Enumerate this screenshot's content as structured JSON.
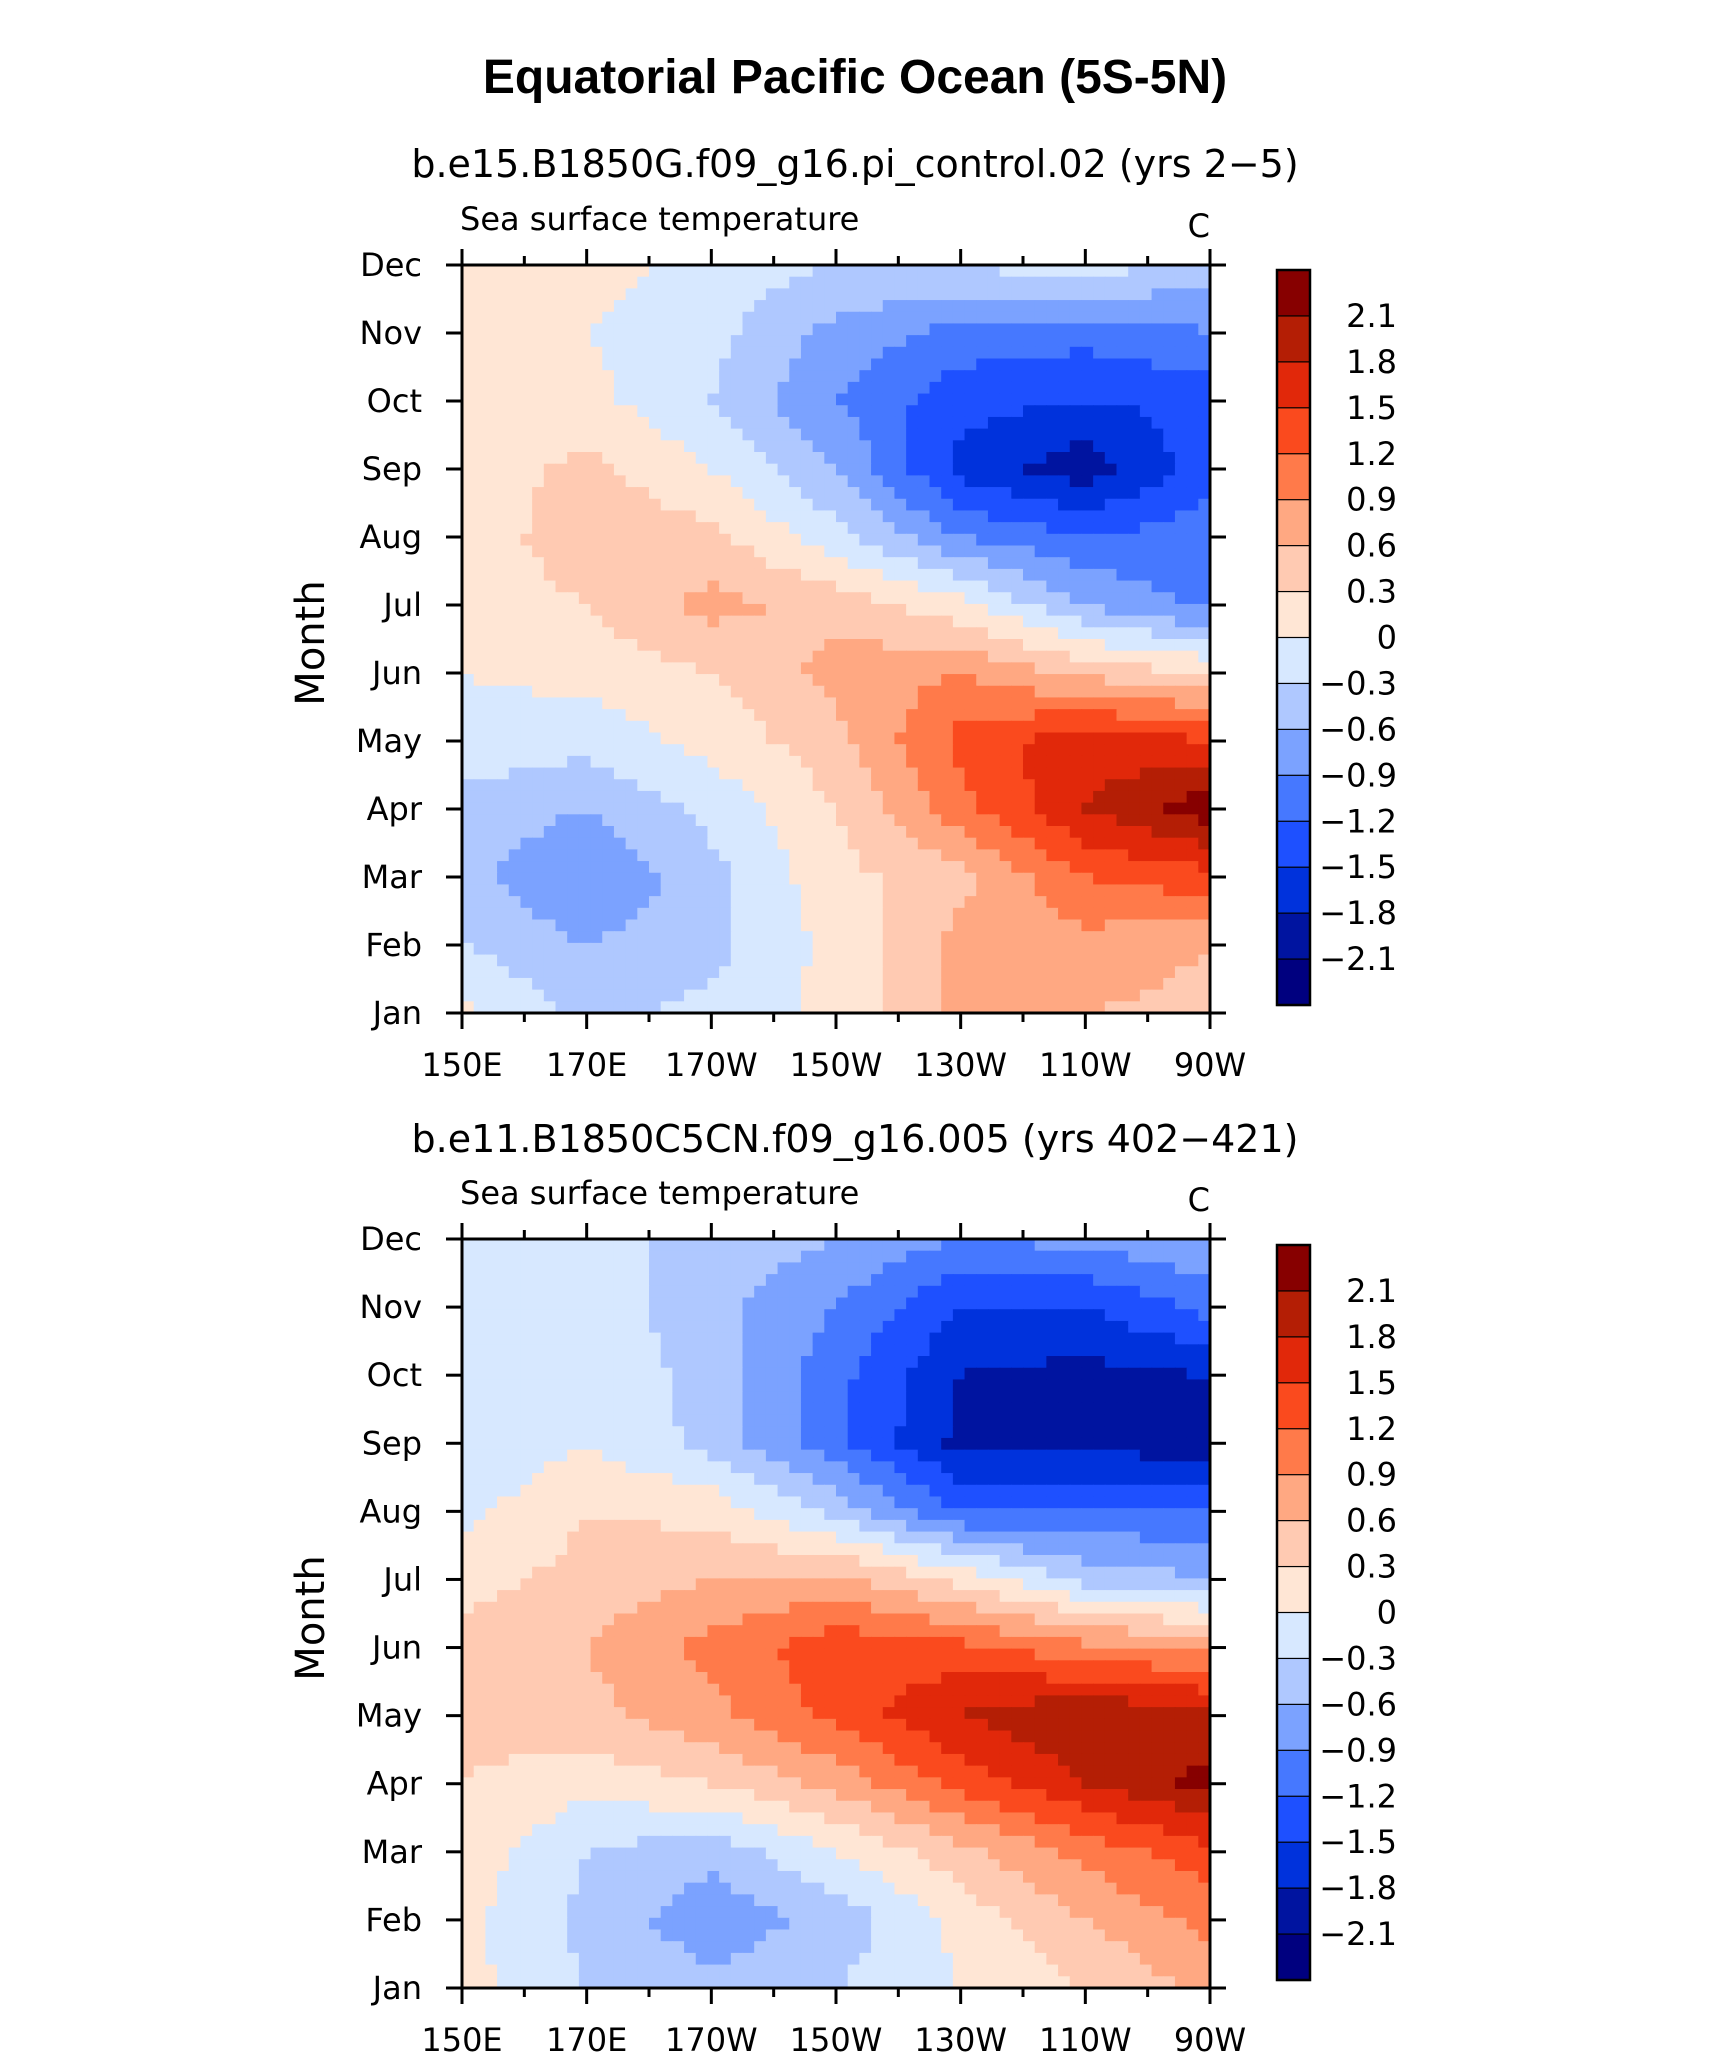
{
  "title": "Equatorial Pacific Ocean (5S-5N)",
  "chart_data": [
    {
      "type": "heatmap",
      "title": "b.e15.B1850G.f09_g16.pi_control.02 (yrs 2−5)",
      "subtitle_left": "Sea surface temperature",
      "units": "C",
      "xlabel": "",
      "ylabel": "Month",
      "x": [
        "150E",
        "170E",
        "170W",
        "150W",
        "130W",
        "110W",
        "90W"
      ],
      "y": [
        "Jan",
        "Feb",
        "Mar",
        "Apr",
        "May",
        "Jun",
        "Jul",
        "Aug",
        "Sep",
        "Oct",
        "Nov",
        "Dec"
      ],
      "values": [
        [
          0.1,
          -0.4,
          -0.2,
          0.1,
          0.7,
          0.6,
          0.5
        ],
        [
          -0.3,
          -0.6,
          -0.4,
          0.1,
          0.7,
          0.8,
          0.6
        ],
        [
          -0.5,
          -0.9,
          -0.4,
          0.2,
          0.5,
          1.2,
          1.4
        ],
        [
          -0.4,
          -0.6,
          -0.2,
          0.3,
          1.1,
          1.8,
          2.3
        ],
        [
          -0.1,
          -0.2,
          0.1,
          0.5,
          1.3,
          1.7,
          1.5
        ],
        [
          0.0,
          0.1,
          0.3,
          0.7,
          0.9,
          0.5,
          0.3
        ],
        [
          0.1,
          0.3,
          0.7,
          0.5,
          0.1,
          -0.6,
          -1.0
        ],
        [
          0.1,
          0.5,
          0.4,
          -0.2,
          -0.9,
          -1.2,
          -1.0
        ],
        [
          0.1,
          0.4,
          0.0,
          -0.6,
          -1.6,
          -2.0,
          -1.3
        ],
        [
          0.0,
          0.1,
          -0.3,
          -0.9,
          -1.4,
          -1.5,
          -1.4
        ],
        [
          0.2,
          0.0,
          -0.2,
          -0.7,
          -1.0,
          -1.1,
          -0.9
        ],
        [
          0.3,
          0.1,
          -0.1,
          -0.3,
          -0.3,
          -0.1,
          -0.5
        ]
      ],
      "colorbar_levels": [
        "2.1",
        "1.8",
        "1.5",
        "1.2",
        "0.9",
        "0.6",
        "0.3",
        "0",
        "−0.3",
        "−0.6",
        "−0.9",
        "−1.2",
        "−1.5",
        "−1.8",
        "−2.1"
      ]
    },
    {
      "type": "heatmap",
      "title": "b.e11.B1850C5CN.f09_g16.005 (yrs 402−421)",
      "subtitle_left": "Sea surface temperature",
      "units": "C",
      "xlabel": "",
      "ylabel": "Month",
      "x": [
        "150E",
        "170E",
        "170W",
        "150W",
        "130W",
        "110W",
        "90W"
      ],
      "y": [
        "Jan",
        "Feb",
        "Mar",
        "Apr",
        "May",
        "Jun",
        "Jul",
        "Aug",
        "Sep",
        "Oct",
        "Nov",
        "Dec"
      ],
      "values": [
        [
          0.1,
          -0.3,
          -0.5,
          -0.3,
          0.0,
          0.3,
          0.7
        ],
        [
          0.1,
          -0.4,
          -0.8,
          -0.5,
          0.1,
          0.6,
          1.0
        ],
        [
          0.2,
          -0.3,
          -0.5,
          0.0,
          0.5,
          1.0,
          1.4
        ],
        [
          0.3,
          0.1,
          0.3,
          0.7,
          1.3,
          1.8,
          2.2
        ],
        [
          0.4,
          0.5,
          0.8,
          1.3,
          1.8,
          2.1,
          1.9
        ],
        [
          0.4,
          0.6,
          1.0,
          1.4,
          1.3,
          1.0,
          0.8
        ],
        [
          0.2,
          0.4,
          0.6,
          0.7,
          0.2,
          -0.4,
          -0.6
        ],
        [
          -0.1,
          0.3,
          0.2,
          -0.4,
          -1.2,
          -1.2,
          -1.1
        ],
        [
          -0.3,
          0.0,
          -0.4,
          -1.1,
          -1.9,
          -1.9,
          -2.0
        ],
        [
          -0.2,
          -0.1,
          -0.4,
          -1.1,
          -1.8,
          -1.9,
          -1.8
        ],
        [
          -0.1,
          -0.1,
          -0.5,
          -0.9,
          -1.5,
          -1.5,
          -1.1
        ],
        [
          -0.1,
          -0.2,
          -0.4,
          -0.6,
          -0.9,
          -0.8,
          -0.6
        ]
      ],
      "colorbar_levels": [
        "2.1",
        "1.8",
        "1.5",
        "1.2",
        "0.9",
        "0.6",
        "0.3",
        "0",
        "−0.3",
        "−0.6",
        "−0.9",
        "−1.2",
        "−1.5",
        "−1.8",
        "−2.1"
      ]
    }
  ],
  "palette": [
    "#00007f",
    "#0014a0",
    "#0032dc",
    "#1e50ff",
    "#4678ff",
    "#7ba2ff",
    "#afc8ff",
    "#d7e8ff",
    "#ffe6d5",
    "#ffcab2",
    "#ffa882",
    "#ff7a4a",
    "#fa4a1e",
    "#e1280a",
    "#b41e05",
    "#870000"
  ]
}
